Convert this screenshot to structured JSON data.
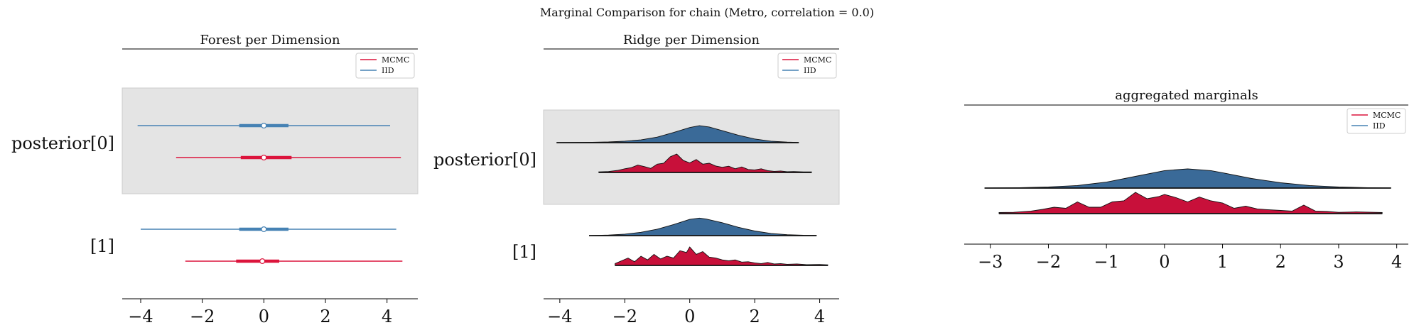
{
  "figure": {
    "suptitle": "Marginal Comparison for chain (Metro, correlation = 0.0)"
  },
  "colors": {
    "mcmc": "#dc143c",
    "iid": "#4682b4",
    "band": "#e4e4e4",
    "ridge_mcmc": "#c8103a",
    "ridge_iid": "#3a6a98"
  },
  "legend": {
    "items": [
      "MCMC",
      "IID"
    ]
  },
  "chart_data": [
    {
      "type": "forest",
      "title": "Forest per Dimension",
      "xlim": [
        -4.6,
        5.0
      ],
      "xticks": [
        -4,
        -2,
        0,
        2,
        4
      ],
      "xtick_labels": [
        "−4",
        "−2",
        "0",
        "2",
        "4"
      ],
      "ylabels": [
        "posterior[0]",
        "[1]"
      ],
      "shaded_row": 0,
      "legend_position": "top-right",
      "rows": [
        {
          "label": "posterior[0]",
          "series": [
            {
              "name": "IID",
              "min": -4.1,
              "q1": -0.8,
              "median": 0.0,
              "q3": 0.8,
              "max": 4.1
            },
            {
              "name": "MCMC",
              "min": -2.85,
              "q1": -0.75,
              "median": 0.0,
              "q3": 0.9,
              "max": 4.45
            }
          ]
        },
        {
          "label": "[1]",
          "series": [
            {
              "name": "IID",
              "min": -4.0,
              "q1": -0.8,
              "median": 0.0,
              "q3": 0.8,
              "max": 4.3
            },
            {
              "name": "MCMC",
              "min": -2.55,
              "q1": -0.9,
              "median": -0.05,
              "q3": 0.5,
              "max": 4.5
            }
          ]
        }
      ]
    },
    {
      "type": "ridge",
      "title": "Ridge per Dimension",
      "xlim": [
        -4.5,
        4.6
      ],
      "xticks": [
        -4,
        -2,
        0,
        2,
        4
      ],
      "xtick_labels": [
        "−4",
        "−2",
        "0",
        "2",
        "4"
      ],
      "ylabels": [
        "posterior[0]",
        "[1]"
      ],
      "shaded_row": 0,
      "legend_position": "top-right",
      "rows": [
        {
          "label": "posterior[0]",
          "series": [
            {
              "name": "IID",
              "x": [
                -4.1,
                -3.5,
                -3.0,
                -2.5,
                -2.0,
                -1.5,
                -1.0,
                -0.5,
                0.0,
                0.3,
                0.6,
                1.0,
                1.5,
                2.0,
                2.5,
                3.0,
                3.35
              ],
              "y": [
                0.0,
                0.01,
                0.02,
                0.04,
                0.08,
                0.15,
                0.3,
                0.55,
                0.82,
                0.92,
                0.85,
                0.65,
                0.4,
                0.2,
                0.08,
                0.03,
                0.01
              ]
            },
            {
              "name": "MCMC",
              "x": [
                -2.8,
                -2.5,
                -2.2,
                -2.0,
                -1.8,
                -1.6,
                -1.4,
                -1.2,
                -1.0,
                -0.8,
                -0.6,
                -0.4,
                -0.2,
                0.0,
                0.2,
                0.4,
                0.6,
                0.8,
                1.0,
                1.2,
                1.4,
                1.6,
                1.8,
                2.0,
                2.2,
                2.4,
                2.6,
                2.8,
                3.0,
                3.2,
                3.5,
                3.75
              ],
              "y": [
                0.03,
                0.05,
                0.12,
                0.2,
                0.26,
                0.4,
                0.32,
                0.22,
                0.45,
                0.5,
                0.85,
                1.0,
                0.65,
                0.52,
                0.7,
                0.45,
                0.5,
                0.35,
                0.28,
                0.34,
                0.2,
                0.3,
                0.16,
                0.14,
                0.2,
                0.1,
                0.06,
                0.08,
                0.04,
                0.05,
                0.03,
                0.03
              ]
            }
          ]
        },
        {
          "label": "[1]",
          "series": [
            {
              "name": "IID",
              "x": [
                -3.1,
                -2.5,
                -2.0,
                -1.5,
                -1.0,
                -0.5,
                0.0,
                0.3,
                0.5,
                1.0,
                1.5,
                2.0,
                2.5,
                3.0,
                3.5,
                3.9
              ],
              "y": [
                0.0,
                0.03,
                0.08,
                0.18,
                0.35,
                0.6,
                0.88,
                0.95,
                0.9,
                0.7,
                0.45,
                0.25,
                0.12,
                0.05,
                0.02,
                0.01
              ]
            },
            {
              "name": "MCMC",
              "x": [
                -2.3,
                -2.1,
                -1.9,
                -1.7,
                -1.5,
                -1.3,
                -1.1,
                -0.9,
                -0.7,
                -0.5,
                -0.3,
                -0.1,
                0.0,
                0.2,
                0.4,
                0.6,
                0.8,
                1.0,
                1.2,
                1.4,
                1.6,
                1.8,
                2.0,
                2.2,
                2.4,
                2.6,
                2.8,
                3.0,
                3.3,
                3.6,
                4.0,
                4.25
              ],
              "y": [
                0.1,
                0.25,
                0.4,
                0.2,
                0.5,
                0.3,
                0.6,
                0.35,
                0.5,
                0.4,
                0.8,
                0.7,
                1.0,
                0.6,
                0.75,
                0.45,
                0.4,
                0.3,
                0.25,
                0.3,
                0.18,
                0.2,
                0.14,
                0.1,
                0.16,
                0.08,
                0.1,
                0.06,
                0.08,
                0.04,
                0.05,
                0.03
              ]
            }
          ]
        }
      ]
    },
    {
      "type": "ridge",
      "title": "aggregated marginals",
      "xlim": [
        -3.45,
        4.2
      ],
      "xticks": [
        -3,
        -2,
        -1,
        0,
        1,
        2,
        3,
        4
      ],
      "xtick_labels": [
        "−3",
        "−2",
        "−1",
        "0",
        "1",
        "2",
        "3",
        "4"
      ],
      "legend_position": "top-right",
      "rows": [
        {
          "label": "",
          "series": [
            {
              "name": "IID",
              "x": [
                -3.1,
                -2.5,
                -2.0,
                -1.5,
                -1.0,
                -0.5,
                0.0,
                0.4,
                0.8,
                1.0,
                1.5,
                2.0,
                2.5,
                3.0,
                3.5,
                3.9
              ],
              "y": [
                0.0,
                0.02,
                0.05,
                0.12,
                0.28,
                0.55,
                0.82,
                0.9,
                0.82,
                0.72,
                0.45,
                0.25,
                0.12,
                0.05,
                0.02,
                0.01
              ]
            },
            {
              "name": "MCMC",
              "x": [
                -2.85,
                -2.6,
                -2.3,
                -2.1,
                -1.9,
                -1.7,
                -1.5,
                -1.3,
                -1.1,
                -0.9,
                -0.7,
                -0.5,
                -0.3,
                -0.1,
                0.0,
                0.2,
                0.4,
                0.6,
                0.8,
                1.0,
                1.2,
                1.4,
                1.6,
                1.8,
                2.0,
                2.2,
                2.4,
                2.6,
                2.8,
                3.0,
                3.3,
                3.75
              ],
              "y": [
                0.05,
                0.06,
                0.12,
                0.2,
                0.3,
                0.25,
                0.55,
                0.3,
                0.3,
                0.55,
                0.6,
                1.0,
                0.7,
                0.8,
                0.9,
                0.75,
                0.55,
                0.78,
                0.6,
                0.5,
                0.25,
                0.35,
                0.22,
                0.18,
                0.15,
                0.12,
                0.4,
                0.12,
                0.1,
                0.06,
                0.08,
                0.05
              ]
            }
          ]
        }
      ]
    }
  ]
}
